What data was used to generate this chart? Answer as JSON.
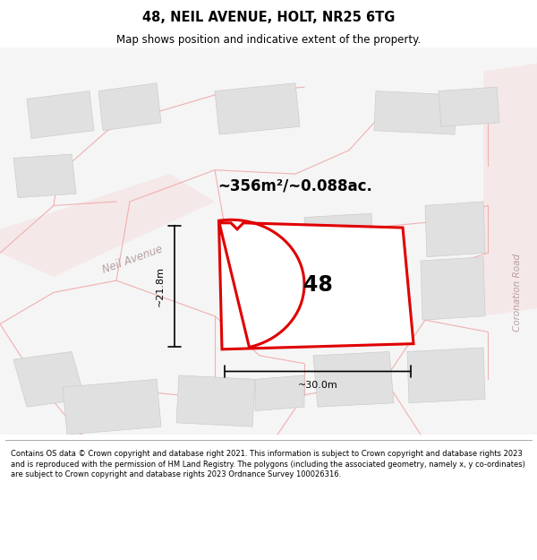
{
  "title": "48, NEIL AVENUE, HOLT, NR25 6TG",
  "subtitle": "Map shows position and indicative extent of the property.",
  "area_text": "~356m²/~0.088ac.",
  "number_label": "48",
  "dim_height": "~21.8m",
  "dim_width": "~30.0m",
  "footer": "Contains OS data © Crown copyright and database right 2021. This information is subject to Crown copyright and database rights 2023 and is reproduced with the permission of HM Land Registry. The polygons (including the associated geometry, namely x, y co-ordinates) are subject to Crown copyright and database rights 2023 Ordnance Survey 100026316.",
  "bg_color": "#f7f7f7",
  "plot_bg": "#f8f8f8",
  "road_color": "#f0b8b8",
  "building_fill": "#e0e0e0",
  "building_stroke": "#cccccc",
  "highlight_color": "#e00000",
  "boundary_color": "#f0b0b0",
  "neil_avenue_label_color": "#b8a0a0",
  "coronation_road_label_color": "#b8a0a0"
}
